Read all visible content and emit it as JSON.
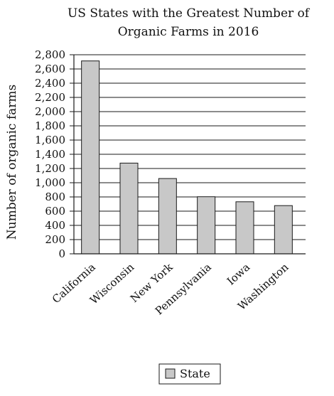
{
  "chart_data": {
    "type": "bar",
    "title": [
      "US States with the Greatest Number of",
      "Organic Farms in 2016"
    ],
    "categories": [
      "California",
      "Wisconsin",
      "New York",
      "Pennsylvania",
      "Iowa",
      "Washington"
    ],
    "series": [
      {
        "name": "State",
        "values": [
          2713,
          1276,
          1059,
          803,
          732,
          678
        ]
      }
    ],
    "xlabel": "",
    "ylabel": "Number of organic farms",
    "ylim": [
      0,
      2800
    ],
    "yticks": [
      0,
      200,
      400,
      600,
      800,
      1000,
      1200,
      1400,
      1600,
      1800,
      2000,
      2200,
      2400,
      2600,
      2800
    ],
    "ytick_labels": [
      "0",
      "200",
      "400",
      "600",
      "800",
      "1,000",
      "1,200",
      "1,400",
      "1,600",
      "1,800",
      "2,000",
      "2,200",
      "2,400",
      "2,600",
      "2,800"
    ],
    "grid": true,
    "legend": "bottom-center",
    "colors": {
      "bar_fill": "#c8c8c8",
      "bar_stroke": "#1a1a1a",
      "grid": "#1a1a1a",
      "text": "#111111"
    }
  }
}
